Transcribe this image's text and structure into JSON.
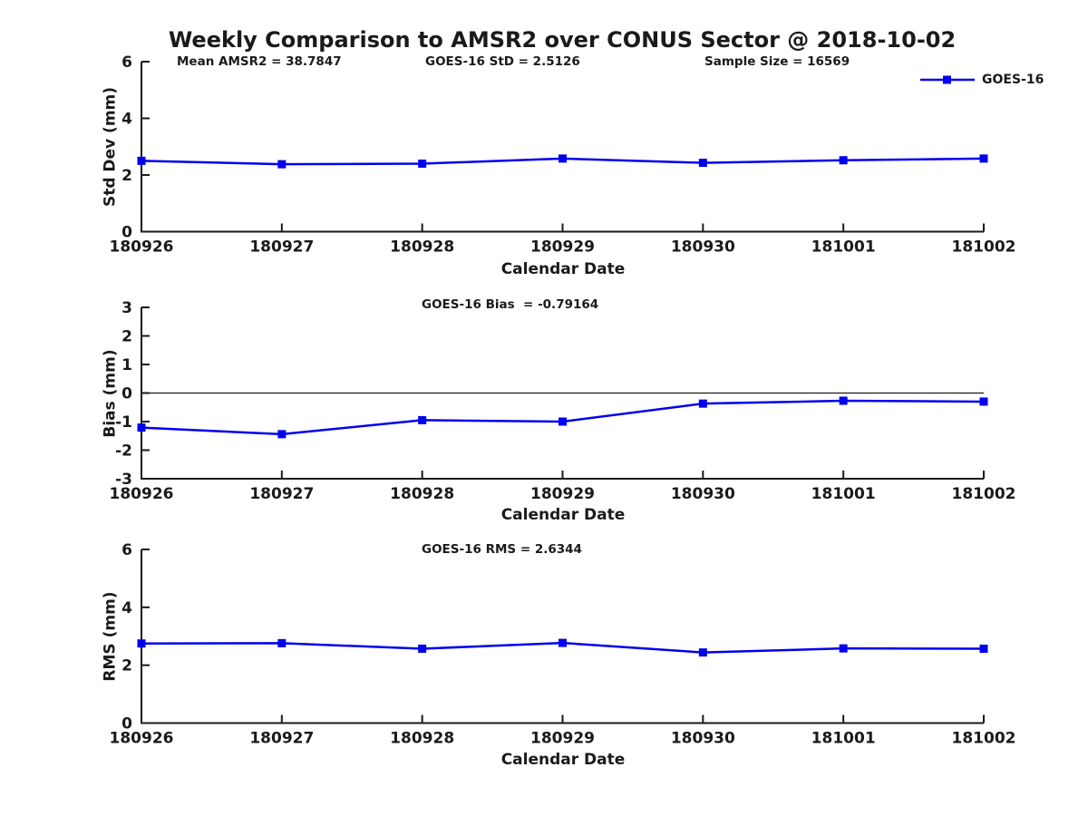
{
  "title": "Weekly Comparison to AMSR2 over CONUS Sector @ 2018-10-02",
  "annotations": {
    "mean_amsr2": "Mean AMSR2 = 38.7847",
    "goes16_std": "GOES-16 StD = 2.5126",
    "sample_size": "Sample Size = 16569"
  },
  "legend": {
    "label": "GOES-16",
    "marker": "square",
    "color": "#0000ee",
    "position": "upper-right-outside"
  },
  "colors": {
    "line": "#0000ee",
    "text": "#1a1a1a",
    "axis": "#1a1a1a",
    "zero_line": "#1a1a1a",
    "background": "#ffffff"
  },
  "chart_data": [
    {
      "type": "line",
      "title": "",
      "categories": [
        "180926",
        "180927",
        "180928",
        "180929",
        "180930",
        "181001",
        "181002"
      ],
      "series": [
        {
          "name": "GOES-16",
          "values": [
            2.5,
            2.38,
            2.4,
            2.58,
            2.43,
            2.52,
            2.58
          ]
        }
      ],
      "xlabel": "Calendar Date",
      "ylabel": "Std Dev (mm)",
      "ylim": [
        0,
        6
      ],
      "yticks": [
        0,
        2,
        4,
        6
      ],
      "grid": false,
      "zero_line": false
    },
    {
      "type": "line",
      "title": "GOES-16 Bias  = -0.79164",
      "categories": [
        "180926",
        "180927",
        "180928",
        "180929",
        "180930",
        "181001",
        "181002"
      ],
      "series": [
        {
          "name": "GOES-16",
          "values": [
            -1.21,
            -1.44,
            -0.95,
            -1.0,
            -0.37,
            -0.27,
            -0.3
          ]
        }
      ],
      "xlabel": "Calendar Date",
      "ylabel": "Bias (mm)",
      "ylim": [
        -3,
        3
      ],
      "yticks": [
        -3,
        -2,
        -1,
        0,
        1,
        2,
        3
      ],
      "grid": false,
      "zero_line": true
    },
    {
      "type": "line",
      "title": "GOES-16 RMS = 2.6344",
      "categories": [
        "180926",
        "180927",
        "180928",
        "180929",
        "180930",
        "181001",
        "181002"
      ],
      "series": [
        {
          "name": "GOES-16",
          "values": [
            2.75,
            2.76,
            2.57,
            2.77,
            2.44,
            2.58,
            2.57
          ]
        }
      ],
      "xlabel": "Calendar Date",
      "ylabel": "RMS (mm)",
      "ylim": [
        0,
        6
      ],
      "yticks": [
        0,
        2,
        4,
        6
      ],
      "grid": false,
      "zero_line": false
    }
  ]
}
